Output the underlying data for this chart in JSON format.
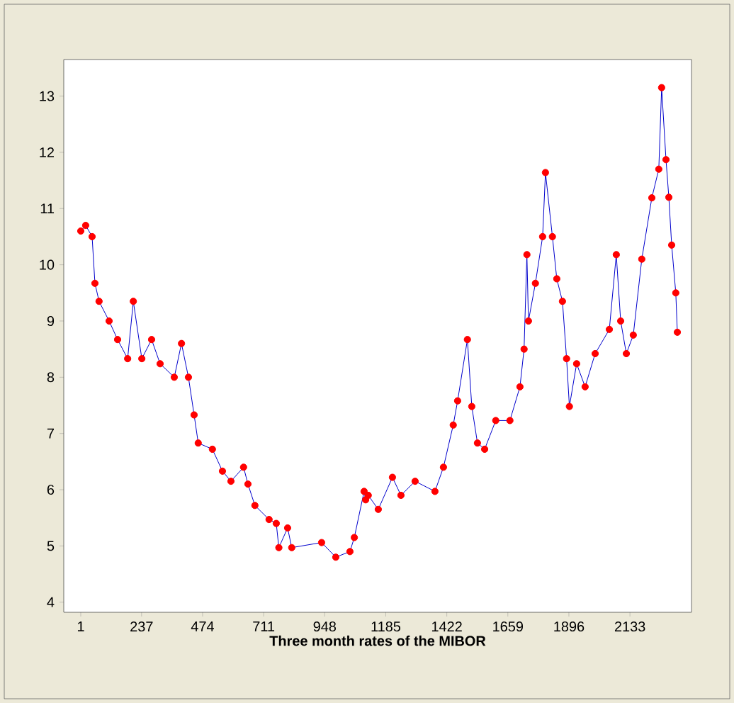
{
  "chart_data": {
    "type": "line",
    "xlabel": "Three month rates of the MIBOR",
    "marker": "circle",
    "grid": false,
    "xlim": [
      -65,
      2372
    ],
    "ylim": [
      3.82,
      13.65
    ],
    "xticks": [
      1,
      237,
      474,
      711,
      948,
      1185,
      1422,
      1659,
      1896,
      2133
    ],
    "yticks": [
      4,
      5,
      6,
      7,
      8,
      9,
      10,
      11,
      12,
      13
    ],
    "series": [
      {
        "color": "#ff0000",
        "x": [
          1,
          20,
          45,
          56,
          72,
          111,
          144,
          183,
          205,
          238,
          276,
          309,
          364,
          392,
          419,
          441,
          457,
          512,
          551,
          584,
          633,
          650,
          677,
          732,
          760,
          770,
          804,
          820,
          936,
          991,
          1046,
          1063,
          1101,
          1107,
          1117,
          1156,
          1211,
          1244,
          1299,
          1376,
          1409,
          1447,
          1464,
          1502,
          1519,
          1541,
          1569,
          1612,
          1667,
          1706,
          1722,
          1733,
          1739,
          1766,
          1794,
          1805,
          1832,
          1849,
          1871,
          1887,
          1898,
          1926,
          1959,
          1998,
          2053,
          2080,
          2097,
          2119,
          2146,
          2179,
          2218,
          2245,
          2256,
          2273,
          2284,
          2295,
          2311,
          2317
        ],
        "values": [
          10.6,
          10.7,
          10.5,
          9.67,
          9.35,
          9.0,
          8.67,
          8.33,
          9.35,
          8.33,
          8.67,
          8.24,
          8.0,
          8.6,
          8.0,
          7.33,
          6.83,
          6.72,
          6.33,
          6.15,
          6.4,
          6.1,
          5.72,
          5.47,
          5.4,
          4.97,
          5.32,
          4.97,
          5.06,
          4.8,
          4.9,
          5.15,
          5.97,
          5.82,
          5.9,
          5.65,
          6.22,
          5.9,
          6.15,
          5.97,
          6.4,
          7.15,
          7.58,
          8.67,
          7.48,
          6.83,
          6.72,
          7.23,
          7.23,
          7.83,
          8.5,
          10.18,
          9.0,
          9.67,
          10.5,
          11.64,
          10.5,
          9.75,
          9.35,
          8.33,
          7.48,
          8.24,
          7.83,
          8.42,
          8.85,
          10.18,
          9.0,
          8.42,
          8.75,
          10.1,
          11.19,
          11.7,
          13.15,
          11.87,
          11.2,
          10.35,
          9.5,
          8.8
        ]
      }
    ]
  }
}
